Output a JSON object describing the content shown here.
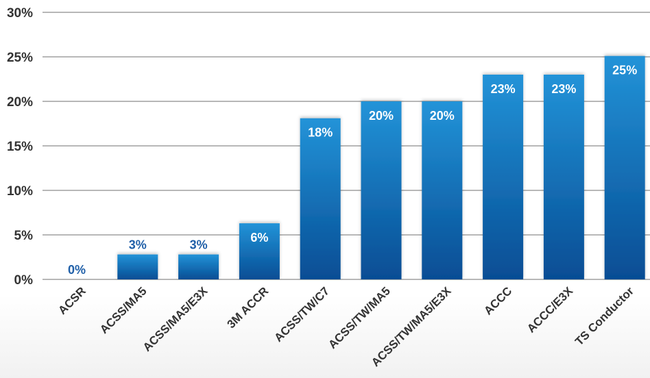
{
  "chart_data": {
    "type": "bar",
    "title": "",
    "xlabel": "",
    "ylabel": "",
    "categories": [
      "ACSR",
      "ACSS/MA5",
      "ACSS/MA5/E3X",
      "3M ACCR",
      "ACSS/TW/C7",
      "ACSS/TW/MA5",
      "ACSS/TW/MA5/E3X",
      "ACCC",
      "ACCC/E3X",
      "TS Conductor"
    ],
    "values": [
      0,
      2.8,
      2.8,
      6.3,
      18.1,
      20.0,
      20.0,
      23.0,
      23.0,
      25.1
    ],
    "data_labels": [
      "0%",
      "3%",
      "3%",
      "6%",
      "18%",
      "20%",
      "20%",
      "23%",
      "23%",
      "25%"
    ],
    "ylim": [
      0,
      30
    ],
    "yticks": [
      0,
      5,
      10,
      15,
      20,
      25,
      30
    ],
    "ytick_labels": [
      "0%",
      "5%",
      "10%",
      "15%",
      "20%",
      "25%",
      "30%"
    ],
    "grid": true,
    "legend": "none",
    "colors": {
      "bar_top": "#2393d8",
      "bar_bottom": "#064d94",
      "label_outside": "#1f5fa8",
      "label_inside": "#ffffff",
      "gridline": "#8c8c8c",
      "text": "#333333"
    }
  }
}
